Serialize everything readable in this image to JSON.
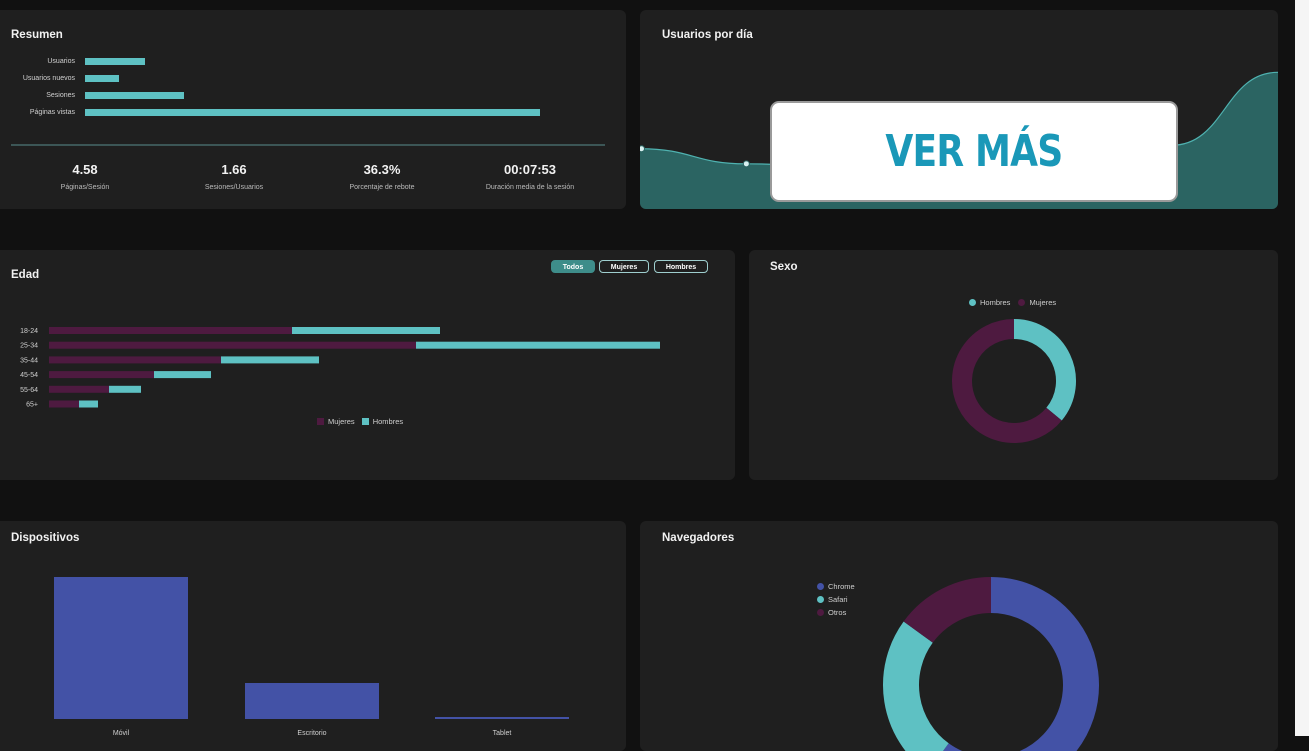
{
  "colors": {
    "teal": "#5ec1c3",
    "purple": "#4e1a40",
    "indigo": "#4352a6",
    "area_fill": "#2b6462",
    "cta_text": "#1a98b8"
  },
  "resumen": {
    "title": "Resumen",
    "chart_data": {
      "type": "bar",
      "orientation": "horizontal",
      "categories": [
        "Usuarios",
        "Usuarios nuevos",
        "Sesiones",
        "Páginas vistas"
      ],
      "values": [
        60,
        34,
        99,
        455
      ]
    },
    "metrics": [
      {
        "value": "4.58",
        "label": "Páginas/Sesión"
      },
      {
        "value": "1.66",
        "label": "Sesiones/Usuarios"
      },
      {
        "value": "36.3%",
        "label": "Porcentaje de rebote"
      },
      {
        "value": "00:07:53",
        "label": "Duración media de la sesión"
      }
    ]
  },
  "usuarios_dia": {
    "title": "Usuarios por día",
    "chart_data": {
      "type": "area",
      "x": [
        0,
        1,
        2,
        3,
        4,
        5,
        6
      ],
      "values": [
        52,
        39,
        36,
        38,
        42,
        55,
        118
      ],
      "ylim": [
        0,
        120
      ]
    },
    "cta_label": "VER MÁS"
  },
  "edad": {
    "title": "Edad",
    "filters": [
      "Todos",
      "Mujeres",
      "Hombres"
    ],
    "active_filter": "Todos",
    "chart_data": {
      "type": "bar",
      "orientation": "horizontal",
      "stacked": true,
      "categories": [
        "18-24",
        "25-34",
        "35-44",
        "45-54",
        "55-64",
        "65+"
      ],
      "series": [
        {
          "name": "Mujeres",
          "values": [
            243,
            367,
            172,
            105,
            60,
            30
          ]
        },
        {
          "name": "Hombres",
          "values": [
            148,
            244,
            98,
            57,
            32,
            19
          ]
        }
      ]
    }
  },
  "sexo": {
    "title": "Sexo",
    "chart_data": {
      "type": "pie",
      "donut": true,
      "categories": [
        "Hombres",
        "Mujeres"
      ],
      "values": [
        36,
        64
      ]
    }
  },
  "dispositivos": {
    "title": "Dispositivos",
    "chart_data": {
      "type": "bar",
      "categories": [
        "Móvil",
        "Escritorio",
        "Tablet"
      ],
      "values": [
        142,
        36,
        2
      ],
      "ylim": [
        0,
        150
      ]
    }
  },
  "navegadores": {
    "title": "Navegadores",
    "chart_data": {
      "type": "pie",
      "donut": true,
      "categories": [
        "Chrome",
        "Safari",
        "Otros"
      ],
      "values": [
        60,
        25,
        15
      ]
    }
  }
}
